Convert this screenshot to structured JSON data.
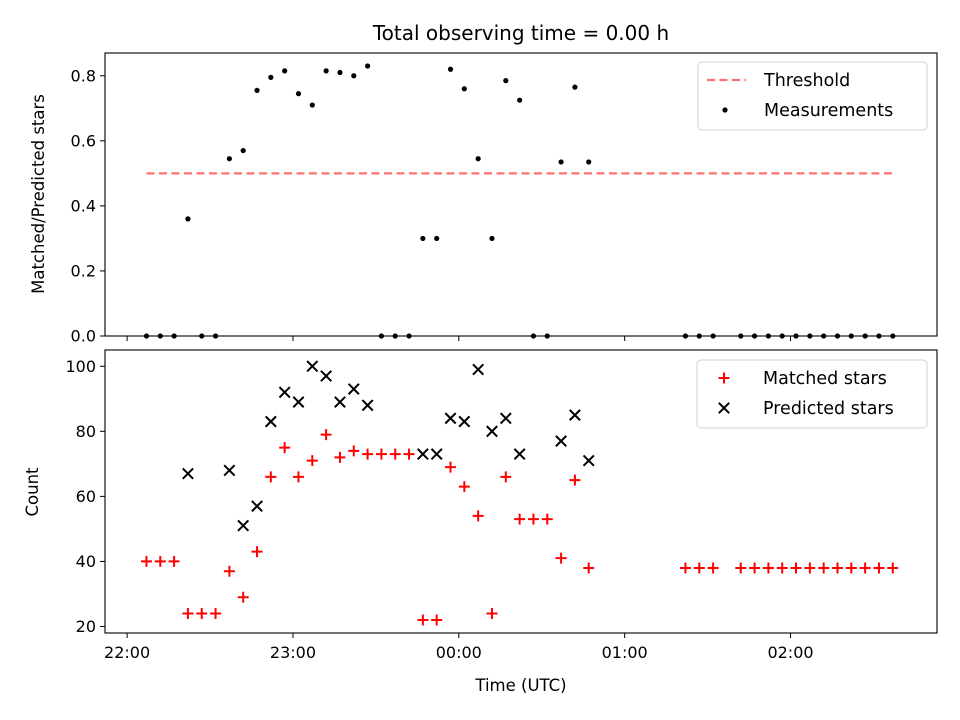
{
  "title": "Total observing time = 0.00 h",
  "chart_data": [
    {
      "type": "scatter",
      "ylabel": "Matched/Predicted stars",
      "ylim": [
        0,
        0.87
      ],
      "yticks": [
        0.0,
        0.2,
        0.4,
        0.6,
        0.8
      ],
      "ytick_labels": [
        "0.0",
        "0.2",
        "0.4",
        "0.6",
        "0.8"
      ],
      "xlim": [
        "21:52",
        "02:53"
      ],
      "legend_position": "upper right",
      "threshold": {
        "name": "Threshold",
        "value": 0.5,
        "x_range": [
          "22:07",
          "02:37"
        ],
        "color": "#ff7070",
        "style": "dashed"
      },
      "series": [
        {
          "name": "Measurements",
          "color": "#000000",
          "x": [
            "22:07",
            "22:12",
            "22:17",
            "22:22",
            "22:27",
            "22:32",
            "22:37",
            "22:42",
            "22:47",
            "22:52",
            "22:57",
            "23:02",
            "23:07",
            "23:12",
            "23:17",
            "23:22",
            "23:27",
            "23:32",
            "23:37",
            "23:42",
            "23:47",
            "23:52",
            "23:57",
            "00:02",
            "00:07",
            "00:12",
            "00:17",
            "00:22",
            "00:27",
            "00:32",
            "00:37",
            "00:42",
            "00:47",
            "01:22",
            "01:27",
            "01:32",
            "01:42",
            "01:47",
            "01:52",
            "01:57",
            "02:02",
            "02:07",
            "02:12",
            "02:17",
            "02:22",
            "02:27",
            "02:32",
            "02:37"
          ],
          "y": [
            0,
            0,
            0,
            0.36,
            0,
            0,
            0.545,
            0.57,
            0.755,
            0.795,
            0.815,
            0.745,
            0.71,
            0.815,
            0.81,
            0.8,
            0.83,
            0,
            0,
            0,
            0.3,
            0.3,
            0.82,
            0.76,
            0.545,
            0.3,
            0.785,
            0.725,
            0,
            0,
            0.535,
            0.765,
            0.535,
            0,
            0,
            0,
            0,
            0,
            0,
            0,
            0,
            0,
            0,
            0,
            0,
            0,
            0,
            0
          ]
        }
      ]
    },
    {
      "type": "scatter",
      "xlabel": "Time (UTC)",
      "ylabel": "Count",
      "ylim": [
        18,
        105
      ],
      "yticks": [
        20,
        40,
        60,
        80,
        100
      ],
      "ytick_labels": [
        "20",
        "40",
        "60",
        "80",
        "100"
      ],
      "xlim": [
        "21:52",
        "02:53"
      ],
      "xticks": [
        "22:00",
        "23:00",
        "00:00",
        "01:00",
        "02:00"
      ],
      "legend_position": "upper right",
      "series": [
        {
          "name": "Matched stars",
          "color": "#ff0000",
          "marker": "+",
          "x": [
            "22:07",
            "22:12",
            "22:17",
            "22:22",
            "22:27",
            "22:32",
            "22:37",
            "22:42",
            "22:47",
            "22:52",
            "22:57",
            "23:02",
            "23:07",
            "23:12",
            "23:17",
            "23:22",
            "23:27",
            "23:32",
            "23:37",
            "23:42",
            "23:47",
            "23:52",
            "23:57",
            "00:02",
            "00:07",
            "00:12",
            "00:17",
            "00:22",
            "00:27",
            "00:32",
            "00:37",
            "00:42",
            "00:47",
            "01:22",
            "01:27",
            "01:32",
            "01:42",
            "01:47",
            "01:52",
            "01:57",
            "02:02",
            "02:07",
            "02:12",
            "02:17",
            "02:22",
            "02:27",
            "02:32",
            "02:37"
          ],
          "y": [
            40,
            40,
            40,
            24,
            24,
            24,
            37,
            29,
            43,
            66,
            75,
            66,
            71,
            79,
            72,
            74,
            73,
            73,
            73,
            73,
            22,
            22,
            69,
            63,
            54,
            24,
            66,
            53,
            53,
            53,
            41,
            65,
            38,
            38,
            38,
            38,
            38,
            38,
            38,
            38,
            38,
            38,
            38,
            38,
            38,
            38,
            38,
            38
          ]
        },
        {
          "name": "Predicted stars",
          "color": "#000000",
          "marker": "x",
          "x": [
            "22:22",
            "22:37",
            "22:42",
            "22:47",
            "22:52",
            "22:57",
            "23:02",
            "23:07",
            "23:12",
            "23:17",
            "23:22",
            "23:27",
            "23:47",
            "23:52",
            "23:57",
            "00:02",
            "00:07",
            "00:12",
            "00:17",
            "00:22",
            "00:37",
            "00:42",
            "00:47"
          ],
          "y": [
            67,
            68,
            51,
            57,
            83,
            92,
            89,
            100,
            97,
            89,
            93,
            88,
            73,
            73,
            84,
            83,
            99,
            80,
            84,
            73,
            77,
            85,
            71
          ]
        }
      ]
    }
  ]
}
